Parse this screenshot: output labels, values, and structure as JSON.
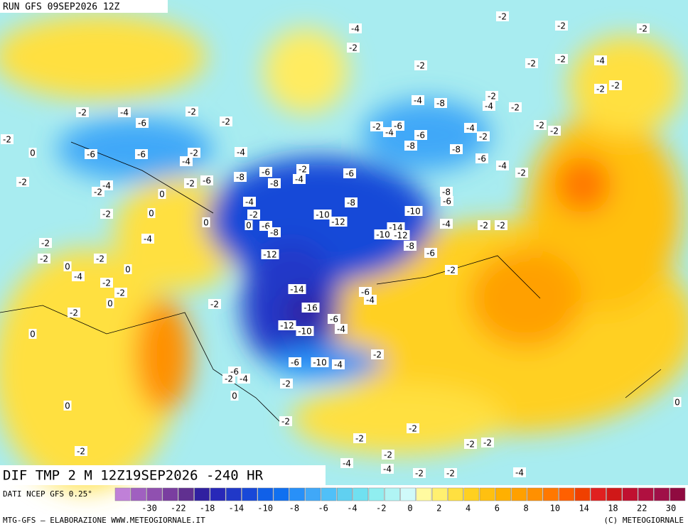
{
  "header": {
    "run": "RUN GFS 09SEP2026 12Z"
  },
  "map": {
    "title": "DIF TMP 2 M 12Z19SEP2026 -240 HR",
    "contour_labels": [
      -4,
      -2,
      -2,
      -2,
      -2,
      -2,
      -2,
      -2,
      -4,
      -2,
      -2,
      -4,
      -8,
      -2,
      -4,
      -2,
      -2,
      -4,
      -2,
      -2,
      -6,
      -2,
      -2,
      -4,
      -6,
      -6,
      -8,
      -4,
      -2,
      -2,
      -2,
      0,
      -6,
      -6,
      -2,
      -4,
      -4,
      -8,
      -6,
      -4,
      -2,
      -2,
      -4,
      -6,
      -6,
      -2,
      -6,
      -8,
      -8,
      -2,
      -4,
      -2,
      0,
      -8,
      -6,
      -4,
      -8,
      0,
      -2,
      -10,
      -10,
      -12,
      -2,
      0,
      0,
      -6,
      -8,
      -14,
      -10,
      -12,
      -4,
      -2,
      -2,
      -4,
      -2,
      -2,
      -8,
      -6,
      -2,
      -12,
      0,
      -4,
      0,
      -2,
      -2,
      -2,
      -14,
      -6,
      -4,
      -2,
      -16,
      -2,
      0,
      -6,
      -4,
      -12,
      -10,
      0,
      -2,
      -6,
      -10,
      -4,
      -6,
      -2,
      -4,
      -2,
      0,
      0,
      -2,
      -2,
      -2,
      -2,
      -2,
      -2,
      -2,
      -4,
      -4,
      -2,
      -2,
      -4,
      0
    ]
  },
  "legend": {
    "source": "DATI NCEP GFS 0.25°",
    "colors": [
      "#c080d8",
      "#a060c0",
      "#9050b0",
      "#7a3ea0",
      "#603090",
      "#3020a0",
      "#2828b8",
      "#2038c8",
      "#1848d8",
      "#1060e8",
      "#1070f0",
      "#2890f8",
      "#40a8f8",
      "#50c0f8",
      "#60d0f0",
      "#70e0f0",
      "#90eef0",
      "#b0f4f4",
      "#d0fafa",
      "#fffaa0",
      "#fff070",
      "#ffe040",
      "#ffd020",
      "#ffc010",
      "#ffb000",
      "#ffa000",
      "#ff9000",
      "#ff7800",
      "#ff6000",
      "#f04000",
      "#e02020",
      "#d01818",
      "#c01030",
      "#b01040",
      "#a01048",
      "#900a40"
    ],
    "labels": [
      -30,
      -22,
      -18,
      -14,
      -10,
      -8,
      -6,
      -4,
      -2,
      0,
      2,
      4,
      6,
      8,
      10,
      14,
      18,
      22,
      30
    ]
  },
  "footer": {
    "left": "MTG-GFS — ELABORAZIONE WWW.METEOGIORNALE.IT",
    "right": "(C) METEOGIORNALE"
  }
}
